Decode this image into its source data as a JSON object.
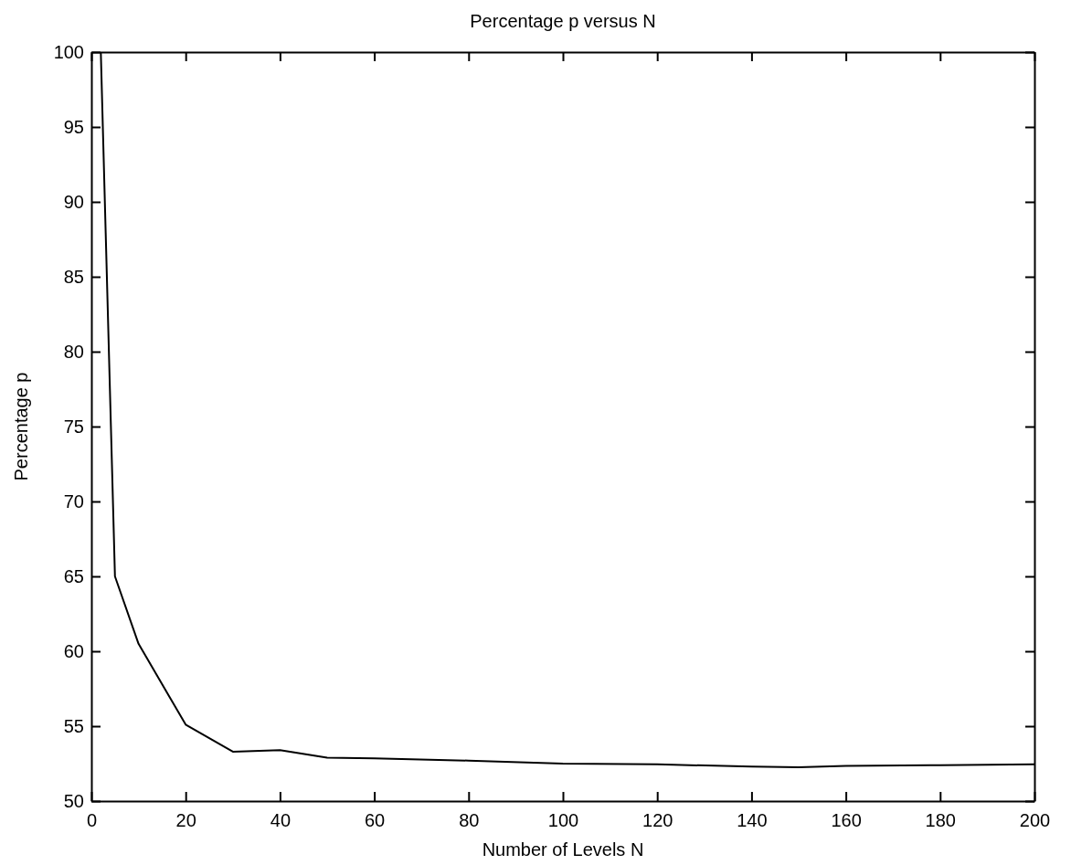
{
  "chart_data": {
    "type": "line",
    "title": "Percentage p versus N",
    "xlabel": "Number of Levels N",
    "ylabel": "Percentage p",
    "x": [
      2,
      5,
      10,
      20,
      30,
      40,
      50,
      60,
      80,
      100,
      120,
      140,
      150,
      160,
      180,
      200
    ],
    "series": [
      {
        "color": "#000000",
        "values": [
          100,
          65,
          60.5,
          55.1,
          53.3,
          53.4,
          52.9,
          52.85,
          52.7,
          52.5,
          52.45,
          52.3,
          52.25,
          52.35,
          52.4,
          52.45
        ]
      }
    ],
    "xlim": [
      0,
      200
    ],
    "xticks": [
      0,
      20,
      40,
      60,
      80,
      100,
      120,
      140,
      160,
      180,
      200
    ],
    "ylim": [
      50,
      100
    ],
    "yticks": [
      50,
      55,
      60,
      65,
      70,
      75,
      80,
      85,
      90,
      95,
      100
    ],
    "grid": false,
    "marker": "none",
    "line_style": "solid"
  }
}
